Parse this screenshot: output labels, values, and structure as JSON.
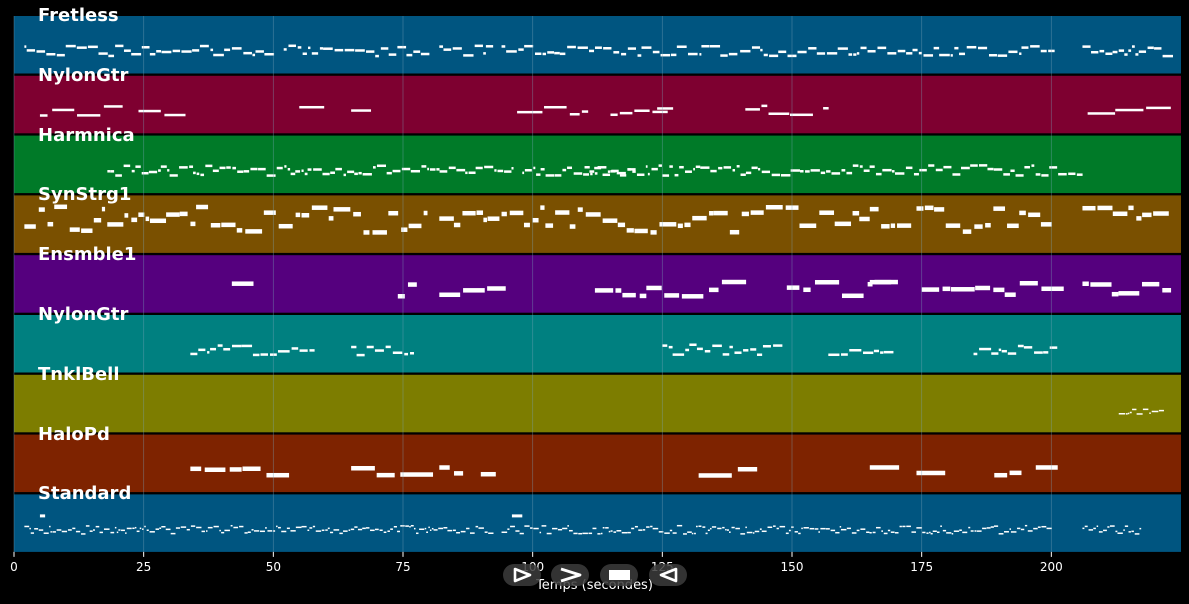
{
  "colors": {
    "background": "#000000",
    "grid": "#7aa3b8",
    "note": "#ffffff"
  },
  "tracks": [
    {
      "name": "Fretless",
      "color": "#005580"
    },
    {
      "name": "NylonGtr",
      "color": "#7e0030"
    },
    {
      "name": "Harmnica",
      "color": "#007a28"
    },
    {
      "name": "SynStrg1",
      "color": "#7a5000"
    },
    {
      "name": "Ensmble1",
      "color": "#55007e"
    },
    {
      "name": "NylonGtr",
      "color": "#008080"
    },
    {
      "name": "TnklBell",
      "color": "#7d7d00"
    },
    {
      "name": "HaloPd",
      "color": "#7e2300"
    },
    {
      "name": "Standard",
      "color": "#005580"
    }
  ],
  "axis": {
    "title": "Temps (secondes)",
    "ticks": [
      "0",
      "25",
      "50",
      "75",
      "100",
      "125",
      "150",
      "175",
      "200"
    ],
    "xlim": [
      0,
      225
    ]
  },
  "controls": [
    {
      "name": "play-button",
      "icon": "play-icon"
    },
    {
      "name": "fast-forward-button",
      "icon": "fast-forward-icon"
    },
    {
      "name": "stop-button",
      "icon": "stop-icon"
    },
    {
      "name": "rewind-button",
      "icon": "rewind-icon"
    }
  ]
}
